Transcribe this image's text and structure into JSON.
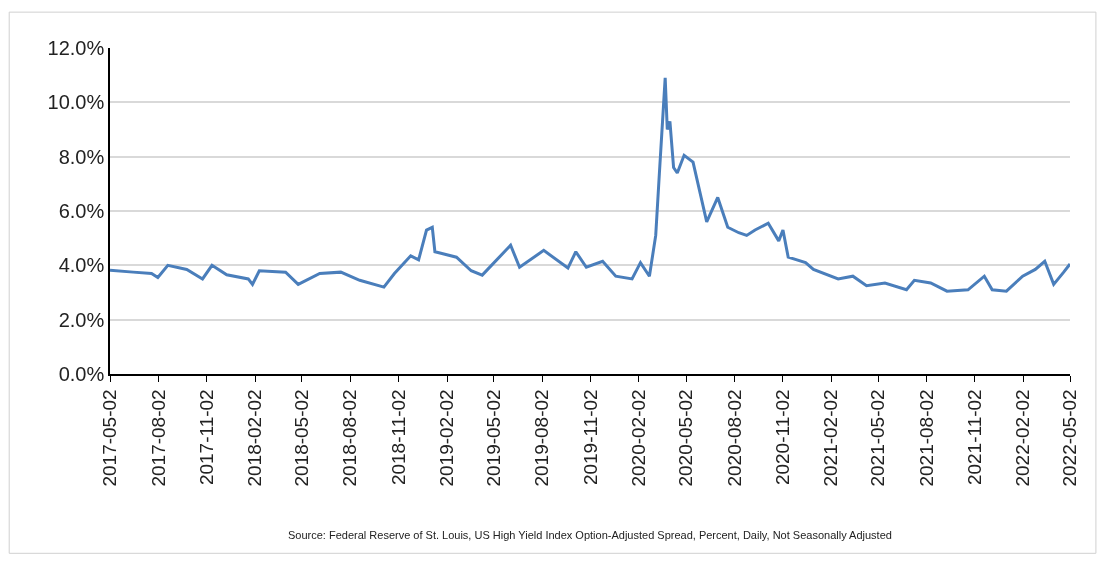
{
  "chart_data": {
    "type": "line",
    "annotations": [
      "Source: Federal Reserve of St. Louis, US High Yield Index Option-Adjusted Spread, Percent, Daily, Not Seasonally Adjusted"
    ],
    "x": [
      "2017-05-02",
      "2017-06-15",
      "2017-07-20",
      "2017-08-01",
      "2017-08-20",
      "2017-09-25",
      "2017-10-25",
      "2017-11-12",
      "2017-12-10",
      "2018-01-20",
      "2018-01-28",
      "2018-02-10",
      "2018-04-01",
      "2018-04-25",
      "2018-06-05",
      "2018-07-15",
      "2018-08-20",
      "2018-10-05",
      "2018-10-25",
      "2018-11-25",
      "2018-12-10",
      "2018-12-25",
      "2019-01-05",
      "2019-01-10",
      "2019-02-20",
      "2019-03-20",
      "2019-04-10",
      "2019-06-03",
      "2019-06-20",
      "2019-08-05",
      "2019-09-20",
      "2019-10-05",
      "2019-10-25",
      "2019-11-25",
      "2019-12-20",
      "2020-01-20",
      "2020-02-05",
      "2020-02-22",
      "2020-03-05",
      "2020-03-12",
      "2020-03-23",
      "2020-03-27",
      "2020-04-01",
      "2020-04-08",
      "2020-04-15",
      "2020-04-28",
      "2020-05-15",
      "2020-06-10",
      "2020-07-01",
      "2020-07-20",
      "2020-08-10",
      "2020-08-25",
      "2020-09-10",
      "2020-10-05",
      "2020-10-25",
      "2020-11-02",
      "2020-11-12",
      "2020-12-15",
      "2020-12-30",
      "2021-02-15",
      "2021-03-15",
      "2021-04-10",
      "2021-05-15",
      "2021-06-25",
      "2021-07-10",
      "2021-08-10",
      "2021-09-10",
      "2021-10-20",
      "2021-11-20",
      "2021-12-05",
      "2022-01-01",
      "2022-02-01",
      "2022-02-25",
      "2022-03-15",
      "2022-04-01",
      "2022-04-20",
      "2022-05-02"
    ],
    "series": [
      {
        "color": "#4a7ebb",
        "values": [
          3.82,
          3.75,
          3.7,
          3.55,
          4.0,
          3.85,
          3.5,
          4.0,
          3.65,
          3.5,
          3.3,
          3.8,
          3.75,
          3.3,
          3.7,
          3.75,
          3.45,
          3.2,
          3.7,
          4.35,
          4.2,
          5.3,
          5.4,
          4.5,
          4.3,
          3.8,
          3.64,
          4.74,
          3.93,
          4.55,
          3.9,
          4.5,
          3.93,
          4.15,
          3.6,
          3.5,
          4.1,
          3.6,
          5.1,
          7.4,
          10.9,
          9.0,
          9.3,
          7.6,
          7.4,
          8.05,
          7.8,
          5.6,
          6.5,
          5.4,
          5.2,
          5.1,
          5.3,
          5.55,
          4.9,
          5.3,
          4.3,
          4.1,
          3.85,
          3.5,
          3.6,
          3.25,
          3.35,
          3.1,
          3.45,
          3.35,
          3.05,
          3.1,
          3.6,
          3.1,
          3.05,
          3.6,
          3.85,
          4.15,
          3.3,
          3.75,
          4.05
        ]
      }
    ],
    "xlim": [
      "2017-05-02",
      "2022-05-02"
    ],
    "xticks": [
      "2017-05-02",
      "2017-08-02",
      "2017-11-02",
      "2018-02-02",
      "2018-05-02",
      "2018-08-02",
      "2018-11-02",
      "2019-02-02",
      "2019-05-02",
      "2019-08-02",
      "2019-11-02",
      "2020-02-02",
      "2020-05-02",
      "2020-08-02",
      "2020-11-02",
      "2021-02-02",
      "2021-05-02",
      "2021-08-02",
      "2021-11-02",
      "2022-02-02",
      "2022-05-02"
    ],
    "ylim": [
      0,
      12
    ],
    "yticks": [
      {
        "value": 0,
        "label": "0.0%"
      },
      {
        "value": 2,
        "label": "2.0%"
      },
      {
        "value": 4,
        "label": "4.0%"
      },
      {
        "value": 6,
        "label": "6.0%"
      },
      {
        "value": 8,
        "label": "8.0%"
      },
      {
        "value": 10,
        "label": "10.0%"
      },
      {
        "value": 12,
        "label": "12.0%"
      }
    ],
    "grid": "y",
    "marker": "none",
    "line_style": "solid"
  }
}
